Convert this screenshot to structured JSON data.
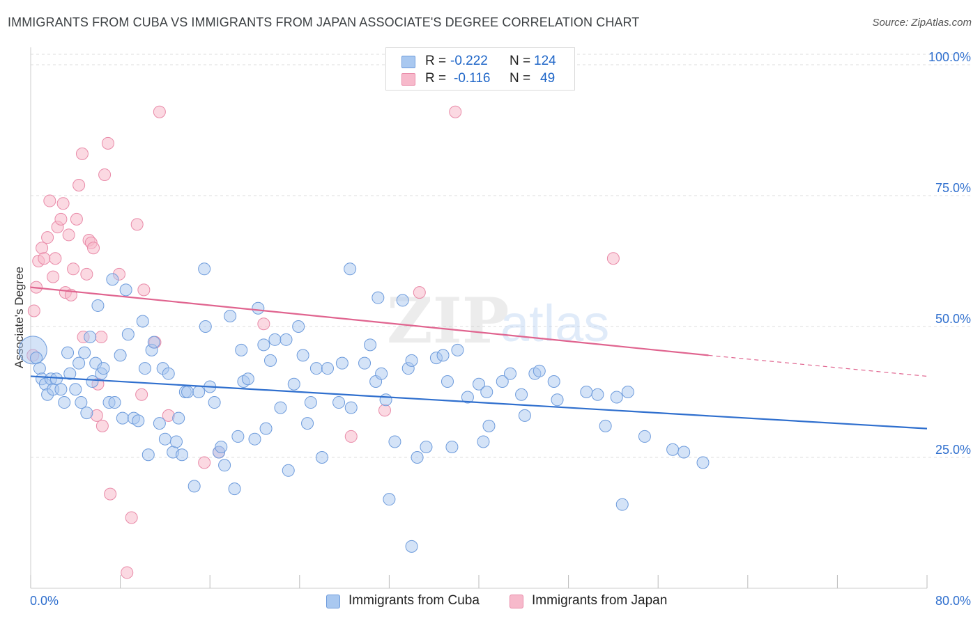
{
  "title": "IMMIGRANTS FROM CUBA VS IMMIGRANTS FROM JAPAN ASSOCIATE'S DEGREE CORRELATION CHART",
  "source": "Source: ZipAtlas.com",
  "watermark": {
    "zip": "ZIP",
    "atlas": "atlas"
  },
  "legend": {
    "cuba": {
      "r_label": "R =",
      "r_value": "-0.222",
      "n_label": "N =",
      "n_value": "124"
    },
    "japan": {
      "r_label": "R =",
      "r_value": "-0.116",
      "n_label": "N =",
      "n_value": "49"
    }
  },
  "colors": {
    "cuba_fill": "#a9c8f0",
    "cuba_stroke": "#6d9bdc",
    "cuba_line": "#2f6fce",
    "japan_fill": "#f7b9cb",
    "japan_stroke": "#e98aa8",
    "japan_line": "#e0648f",
    "tick_label": "#2f6fce",
    "grid": "#dddddd"
  },
  "chart_data": {
    "type": "scatter",
    "title": "IMMIGRANTS FROM CUBA VS IMMIGRANTS FROM JAPAN ASSOCIATE'S DEGREE CORRELATION CHART",
    "xlabel": "",
    "ylabel": "Associate's Degree",
    "xlim": [
      0,
      80
    ],
    "ylim": [
      0,
      102
    ],
    "x_ticks": [
      0,
      8,
      16,
      24,
      32,
      40,
      48,
      56,
      64,
      72,
      80
    ],
    "x_tick_labels": {
      "0": "0.0%",
      "80": "80.0%"
    },
    "y_ticks": [
      25,
      50,
      75,
      100
    ],
    "y_tick_labels": [
      "25.0%",
      "50.0%",
      "75.0%",
      "100.0%"
    ],
    "grid": true,
    "legend_position": "top-center",
    "series": [
      {
        "name": "Immigrants from Cuba",
        "r": -0.222,
        "n": 124,
        "trend": {
          "x0": 0,
          "y0": 40.5,
          "x1": 80,
          "y1": 30.5
        },
        "points": [
          [
            0.2,
            45.5
          ],
          [
            0.5,
            44
          ],
          [
            0.8,
            42
          ],
          [
            1,
            40
          ],
          [
            1.3,
            39
          ],
          [
            1.5,
            37
          ],
          [
            1.8,
            40
          ],
          [
            2,
            38
          ],
          [
            2.3,
            40
          ],
          [
            2.7,
            38
          ],
          [
            3,
            35.5
          ],
          [
            3.3,
            45
          ],
          [
            3.5,
            41
          ],
          [
            4,
            38
          ],
          [
            4.3,
            43
          ],
          [
            4.5,
            35.5
          ],
          [
            4.8,
            45
          ],
          [
            5,
            33.5
          ],
          [
            5.3,
            48
          ],
          [
            5.5,
            39.5
          ],
          [
            5.8,
            43
          ],
          [
            6,
            54
          ],
          [
            6.3,
            41
          ],
          [
            6.5,
            42
          ],
          [
            7,
            35.5
          ],
          [
            7.3,
            59
          ],
          [
            7.5,
            35.5
          ],
          [
            8,
            44.5
          ],
          [
            8.2,
            32.5
          ],
          [
            8.5,
            57
          ],
          [
            8.7,
            48.5
          ],
          [
            9.2,
            32.5
          ],
          [
            9.6,
            32
          ],
          [
            10,
            51
          ],
          [
            10.2,
            42
          ],
          [
            10.5,
            25.5
          ],
          [
            10.8,
            45.5
          ],
          [
            11,
            47
          ],
          [
            11.5,
            31.5
          ],
          [
            11.8,
            42
          ],
          [
            12,
            28.5
          ],
          [
            12.3,
            41
          ],
          [
            12.7,
            26
          ],
          [
            13,
            28
          ],
          [
            13.2,
            32.5
          ],
          [
            13.5,
            25.5
          ],
          [
            13.8,
            37.5
          ],
          [
            14,
            37.5
          ],
          [
            14.6,
            19.5
          ],
          [
            15,
            37.5
          ],
          [
            15.5,
            61
          ],
          [
            15.6,
            50
          ],
          [
            16,
            38.5
          ],
          [
            16.4,
            35.5
          ],
          [
            16.8,
            26
          ],
          [
            17,
            27
          ],
          [
            17.3,
            23.5
          ],
          [
            17.8,
            52
          ],
          [
            18.2,
            19
          ],
          [
            18.5,
            29
          ],
          [
            18.8,
            45.5
          ],
          [
            19,
            39.5
          ],
          [
            19.4,
            40
          ],
          [
            20,
            28.5
          ],
          [
            20.3,
            53.5
          ],
          [
            20.8,
            46.5
          ],
          [
            21,
            30.5
          ],
          [
            21.4,
            43.5
          ],
          [
            21.8,
            47.5
          ],
          [
            22.3,
            34.5
          ],
          [
            22.8,
            47.5
          ],
          [
            23,
            22.5
          ],
          [
            23.5,
            39
          ],
          [
            23.9,
            50
          ],
          [
            24.3,
            44.5
          ],
          [
            24.7,
            31.5
          ],
          [
            25,
            35.5
          ],
          [
            25.5,
            42
          ],
          [
            26,
            25
          ],
          [
            26.5,
            42
          ],
          [
            27.5,
            35.5
          ],
          [
            27.8,
            43
          ],
          [
            28.5,
            61
          ],
          [
            28.6,
            34.5
          ],
          [
            29.8,
            43
          ],
          [
            30.3,
            46.5
          ],
          [
            30.8,
            39.5
          ],
          [
            31,
            55.5
          ],
          [
            31.3,
            41
          ],
          [
            31.7,
            36
          ],
          [
            32,
            17
          ],
          [
            32.5,
            28
          ],
          [
            33.2,
            55
          ],
          [
            33.7,
            42
          ],
          [
            34,
            43.5
          ],
          [
            34.5,
            25
          ],
          [
            35.3,
            27
          ],
          [
            36.2,
            44
          ],
          [
            36.8,
            44.5
          ],
          [
            37.2,
            39.5
          ],
          [
            37.6,
            27
          ],
          [
            38.1,
            45.5
          ],
          [
            39,
            36.5
          ],
          [
            40,
            39
          ],
          [
            40.4,
            28
          ],
          [
            40.7,
            37.5
          ],
          [
            40.9,
            31
          ],
          [
            42.1,
            39.5
          ],
          [
            42.8,
            41
          ],
          [
            43.8,
            37
          ],
          [
            44.1,
            33
          ],
          [
            45,
            41
          ],
          [
            45.4,
            41.5
          ],
          [
            46.7,
            39.5
          ],
          [
            47,
            36
          ],
          [
            49.6,
            37.5
          ],
          [
            50.6,
            37
          ],
          [
            51.3,
            31
          ],
          [
            52.3,
            36.5
          ],
          [
            52.8,
            16
          ],
          [
            53.3,
            37.5
          ],
          [
            54.8,
            29
          ],
          [
            57.3,
            26.5
          ],
          [
            58.3,
            26
          ],
          [
            60,
            24
          ],
          [
            34,
            8
          ]
        ]
      },
      {
        "name": "Immigrants from Japan",
        "r": -0.116,
        "n": 49,
        "trend": {
          "x0": 0,
          "y0": 57.5,
          "x1": 60.5,
          "y1": 44.5
        },
        "trend_dashed": {
          "x0": 60.5,
          "y0": 44.5,
          "x1": 80,
          "y1": 40.5
        },
        "points": [
          [
            0.3,
            53
          ],
          [
            0.5,
            57.5
          ],
          [
            0.7,
            62.5
          ],
          [
            1,
            65
          ],
          [
            1.2,
            63
          ],
          [
            1.5,
            67
          ],
          [
            1.7,
            74
          ],
          [
            2,
            59.5
          ],
          [
            2.2,
            63
          ],
          [
            2.4,
            69
          ],
          [
            2.7,
            70.5
          ],
          [
            2.9,
            73.5
          ],
          [
            3.1,
            56.5
          ],
          [
            3.4,
            67.5
          ],
          [
            3.6,
            56
          ],
          [
            3.8,
            61
          ],
          [
            4.1,
            70.5
          ],
          [
            4.3,
            77
          ],
          [
            4.6,
            83
          ],
          [
            4.7,
            48
          ],
          [
            5,
            60
          ],
          [
            5.2,
            66.5
          ],
          [
            5.4,
            66
          ],
          [
            5.6,
            65
          ],
          [
            5.9,
            33
          ],
          [
            6,
            39
          ],
          [
            6.3,
            48
          ],
          [
            6.4,
            31
          ],
          [
            6.6,
            79
          ],
          [
            6.9,
            85
          ],
          [
            7.1,
            18
          ],
          [
            7.9,
            60
          ],
          [
            8.6,
            3
          ],
          [
            9,
            13.5
          ],
          [
            9.5,
            69.5
          ],
          [
            9.9,
            37
          ],
          [
            10.1,
            57
          ],
          [
            11.1,
            47
          ],
          [
            11.5,
            91
          ],
          [
            12.3,
            33
          ],
          [
            15.5,
            24
          ],
          [
            16.8,
            26
          ],
          [
            20.8,
            50.5
          ],
          [
            28.6,
            29
          ],
          [
            31.6,
            34
          ],
          [
            34.7,
            56.5
          ],
          [
            37.9,
            91
          ],
          [
            52,
            63
          ],
          [
            0.2,
            44.5
          ]
        ]
      }
    ]
  },
  "bottom_legend": {
    "cuba": "Immigrants from Cuba",
    "japan": "Immigrants from Japan"
  }
}
